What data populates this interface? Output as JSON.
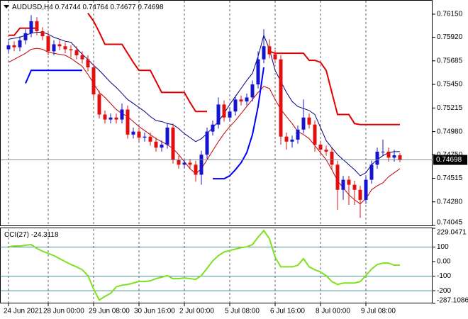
{
  "chart_data": {
    "type": "candlestick",
    "symbol": "AUDUSD,H4",
    "categories": [
      "24 Jun 2021",
      null,
      null,
      null,
      null,
      null,
      null,
      "28 Jun 00:00",
      null,
      null,
      null,
      null,
      null,
      null,
      null,
      "29 Jun 08:00",
      null,
      null,
      null,
      null,
      null,
      null,
      null,
      "30 Jun 16:00",
      null,
      null,
      null,
      null,
      null,
      null,
      null,
      "2 Jul 00:00",
      null,
      null,
      null,
      null,
      null,
      null,
      null,
      "5 Jul 08:00",
      null,
      null,
      null,
      null,
      null,
      null,
      null,
      "6 Jul 16:00",
      null,
      null,
      null,
      null,
      null,
      null,
      null,
      "8 Jul 00:00",
      null,
      null,
      null,
      null,
      null,
      null,
      null,
      "9 Jul 08:00",
      null,
      null,
      null,
      null,
      null,
      null
    ],
    "open": [
      0.758,
      0.7584,
      0.7582,
      0.7589,
      0.7596,
      0.7608,
      0.7598,
      0.7593,
      0.7578,
      0.7585,
      0.7583,
      0.758,
      0.7579,
      0.7574,
      0.757,
      0.7562,
      0.7535,
      0.7515,
      0.751,
      0.7512,
      0.751,
      0.752,
      0.7495,
      0.7498,
      0.7492,
      0.7493,
      0.7488,
      0.7482,
      0.7485,
      0.7502,
      0.747,
      0.7465,
      0.7467,
      0.7465,
      0.7455,
      0.7475,
      0.7498,
      0.7505,
      0.7525,
      0.7512,
      0.7518,
      0.753,
      0.7528,
      0.7532,
      0.7545,
      0.757,
      0.7583,
      0.7575,
      0.757,
      0.7493,
      0.7488,
      0.749,
      0.75,
      0.7512,
      0.7505,
      0.7485,
      0.748,
      0.7478,
      0.7465,
      0.744,
      0.745,
      0.7445,
      0.744,
      0.743,
      0.745,
      0.7465,
      0.7478,
      0.7478,
      0.7472,
      0.74744
    ],
    "high": [
      0.7588,
      0.7588,
      0.7593,
      0.76,
      0.7614,
      0.7612,
      0.7602,
      0.7597,
      0.7589,
      0.7589,
      0.7587,
      0.7584,
      0.7583,
      0.7578,
      0.7574,
      0.7566,
      0.7539,
      0.7519,
      0.7516,
      0.7516,
      0.7526,
      0.7524,
      0.7502,
      0.7502,
      0.7497,
      0.7497,
      0.7492,
      0.7489,
      0.7506,
      0.7506,
      0.7474,
      0.7471,
      0.7471,
      0.7469,
      0.7479,
      0.7502,
      0.7509,
      0.7532,
      0.7529,
      0.7522,
      0.7534,
      0.7534,
      0.7536,
      0.7549,
      0.7578,
      0.76,
      0.759,
      0.7579,
      0.7574,
      0.7497,
      0.7494,
      0.7504,
      0.753,
      0.7516,
      0.7509,
      0.7489,
      0.7484,
      0.7482,
      0.7469,
      0.7454,
      0.7454,
      0.7449,
      0.7444,
      0.7454,
      0.7469,
      0.7482,
      0.749,
      0.7482,
      0.748,
      0.74764
    ],
    "low": [
      0.7576,
      0.7578,
      0.7578,
      0.7585,
      0.7592,
      0.7594,
      0.7589,
      0.7574,
      0.7574,
      0.7579,
      0.7576,
      0.7572,
      0.757,
      0.7566,
      0.7558,
      0.7531,
      0.7511,
      0.7506,
      0.7506,
      0.7506,
      0.7506,
      0.7491,
      0.7491,
      0.7488,
      0.7488,
      0.7484,
      0.7478,
      0.7478,
      0.7481,
      0.7466,
      0.7461,
      0.7461,
      0.7461,
      0.7448,
      0.7445,
      0.7471,
      0.7494,
      0.7501,
      0.7508,
      0.7508,
      0.7514,
      0.7524,
      0.7524,
      0.7528,
      0.7541,
      0.7566,
      0.7571,
      0.7566,
      0.7485,
      0.748,
      0.7482,
      0.7486,
      0.7496,
      0.7501,
      0.7478,
      0.7476,
      0.7474,
      0.746,
      0.742,
      0.743,
      0.7425,
      0.7425,
      0.7412,
      0.7426,
      0.7446,
      0.7461,
      0.7474,
      0.7468,
      0.7468,
      0.74677
    ],
    "close": [
      0.7584,
      0.7582,
      0.7589,
      0.7596,
      0.7608,
      0.7598,
      0.7593,
      0.7578,
      0.7585,
      0.7583,
      0.758,
      0.7579,
      0.7574,
      0.757,
      0.7562,
      0.7535,
      0.7515,
      0.751,
      0.7512,
      0.751,
      0.752,
      0.7495,
      0.7498,
      0.7492,
      0.7493,
      0.7488,
      0.7482,
      0.7485,
      0.7502,
      0.747,
      0.7465,
      0.7467,
      0.7465,
      0.7455,
      0.7475,
      0.7498,
      0.7505,
      0.7525,
      0.7512,
      0.7518,
      0.753,
      0.7528,
      0.7532,
      0.7545,
      0.757,
      0.7583,
      0.7575,
      0.757,
      0.7493,
      0.7488,
      0.749,
      0.75,
      0.7512,
      0.7505,
      0.7485,
      0.748,
      0.7478,
      0.7465,
      0.744,
      0.745,
      0.7445,
      0.744,
      0.743,
      0.745,
      0.7465,
      0.7478,
      0.7478,
      0.7472,
      0.74744,
      0.74698
    ],
    "bull_color": "#1515d0",
    "bear_color": "#e01010",
    "ylim": [
      0.74045,
      0.76291
    ],
    "yticks": [
      {
        "value": 0.7615,
        "label": "0.76150"
      },
      {
        "value": 0.7592,
        "label": "0.75920"
      },
      0.75685,
      {
        "value": 0.7545,
        "label": "0.75450"
      },
      0.75215,
      {
        "value": 0.7498,
        "label": "0.74980"
      },
      {
        "value": 0.7475,
        "label": "0.74750"
      },
      0.74515,
      {
        "value": 0.7428,
        "label": "0.74280"
      },
      0.74045
    ],
    "grid": true,
    "overlays": [
      {
        "color": "#00007f",
        "values": [
          0.759,
          0.7591,
          0.7592,
          0.7594,
          0.7596,
          0.7597,
          0.7597,
          0.7595,
          0.7592,
          0.759,
          0.7588,
          0.7587,
          0.7581,
          0.7575,
          0.757,
          0.7564,
          0.7559,
          0.7553,
          0.7547,
          0.7542,
          0.7536,
          0.753,
          0.7526,
          0.7522,
          0.7518,
          0.7513,
          0.7509,
          0.7508,
          0.7506,
          0.7505,
          0.7501,
          0.7496,
          0.7492,
          0.7488,
          0.7491,
          0.7496,
          0.7502,
          0.7508,
          0.7516,
          0.7525,
          0.7533,
          0.7541,
          0.7549,
          0.7556,
          0.7573,
          0.7594,
          0.758,
          0.7559,
          0.7548,
          0.7537,
          0.7528,
          0.7523,
          0.7521,
          0.7519,
          0.7515,
          0.7502,
          0.7489,
          0.7482,
          0.7475,
          0.747,
          0.7465,
          0.746,
          0.7454,
          0.7457,
          0.7465,
          0.747,
          0.7474,
          0.7477,
          0.7478,
          0.7478
        ]
      },
      {
        "color": "#c00000",
        "values": [
          0.7567,
          0.757,
          0.7573,
          0.7576,
          0.758,
          0.7581,
          0.758,
          0.7577,
          0.7576,
          0.7575,
          0.7574,
          0.7571,
          0.7567,
          0.7563,
          0.7555,
          0.7546,
          0.7537,
          0.7532,
          0.7526,
          0.752,
          0.7516,
          0.7513,
          0.7508,
          0.7503,
          0.7499,
          0.7495,
          0.7491,
          0.7488,
          0.7485,
          0.7481,
          0.7475,
          0.7468,
          0.7461,
          0.7456,
          0.7461,
          0.747,
          0.7479,
          0.7488,
          0.7496,
          0.7503,
          0.7509,
          0.7516,
          0.7523,
          0.753,
          0.7537,
          0.7543,
          0.7541,
          0.753,
          0.752,
          0.7513,
          0.7506,
          0.7498,
          0.7495,
          0.7491,
          0.7484,
          0.7477,
          0.747,
          0.746,
          0.7449,
          0.7442,
          0.7435,
          0.743,
          0.7426,
          0.7431,
          0.744,
          0.7444,
          0.7447,
          0.7453,
          0.7457,
          0.7461
        ]
      },
      {
        "color": "#e00000",
        "values": [
          0.7594,
          0.7594,
          0.7601,
          0.7601,
          0.7601,
          0.7601,
          null,
          null,
          null,
          null,
          null,
          null,
          null,
          null,
          0.7616,
          0.7608,
          0.7597,
          0.7585,
          0.7585,
          0.7585,
          0.7585,
          0.7576,
          0.7567,
          0.7559,
          0.7559,
          0.7559,
          0.7548,
          0.7537,
          0.7537,
          0.7537,
          0.7537,
          0.7537,
          0.7527,
          0.7518,
          0.7518,
          0.7518,
          null,
          null,
          null,
          null,
          null,
          null,
          null,
          null,
          null,
          null,
          0.7578,
          0.7576,
          0.7576,
          0.7576,
          0.7576,
          0.7576,
          0.7576,
          0.7569,
          0.7569,
          0.7567,
          0.7559,
          0.7537,
          0.7515,
          0.7515,
          0.7515,
          0.7506,
          0.7505,
          0.7505,
          0.7505,
          0.7505,
          0.7505,
          0.7505,
          0.7505,
          0.7505
        ]
      },
      {
        "color": "#0000ff",
        "values": [
          null,
          null,
          null,
          0.7546,
          0.7559,
          0.7559,
          0.7559,
          0.7559,
          0.7559,
          0.7559,
          0.7559,
          0.7559,
          0.7559,
          0.7559,
          null,
          null,
          null,
          null,
          null,
          null,
          null,
          null,
          null,
          null,
          null,
          null,
          null,
          null,
          null,
          null,
          null,
          null,
          null,
          null,
          null,
          null,
          0.7451,
          0.7451,
          0.7451,
          0.7454,
          0.746,
          0.7467,
          0.7477,
          0.7495,
          0.7523,
          0.7562,
          null,
          null,
          null,
          null,
          null,
          null,
          null,
          null,
          null,
          null,
          null,
          null,
          null,
          null,
          null,
          null,
          null,
          null,
          null,
          null,
          null,
          null,
          null,
          null
        ]
      }
    ],
    "indicator": {
      "name": "CCI(27)",
      "color": "#7fe020",
      "level_color": "#4f8fa0",
      "values": [
        101,
        107,
        107,
        112,
        117,
        91,
        71,
        56,
        41,
        20,
        0,
        -20,
        -36,
        -56,
        -96,
        -188,
        -264,
        -239,
        -218,
        -173,
        -162,
        -157,
        -147,
        -137,
        -137,
        -132,
        -117,
        -107,
        -96,
        -117,
        -117,
        -112,
        -117,
        -122,
        -96,
        -46,
        5,
        41,
        66,
        76,
        86,
        96,
        101,
        117,
        168,
        213,
        157,
        30,
        -36,
        -36,
        -36,
        -25,
        20,
        -36,
        -56,
        -71,
        -96,
        -137,
        -157,
        -147,
        -147,
        -147,
        -137,
        -96,
        -51,
        -20,
        -10,
        -10,
        -25,
        -24.3118
      ],
      "ylim": [
        -287.1086,
        229.0471
      ],
      "yticks": [
        229.0471,
        100,
        {
          "value": 0,
          "label": "0.00"
        },
        -100,
        -200,
        -287.1086
      ],
      "levels": [
        100,
        -100,
        -200
      ]
    }
  }
}
